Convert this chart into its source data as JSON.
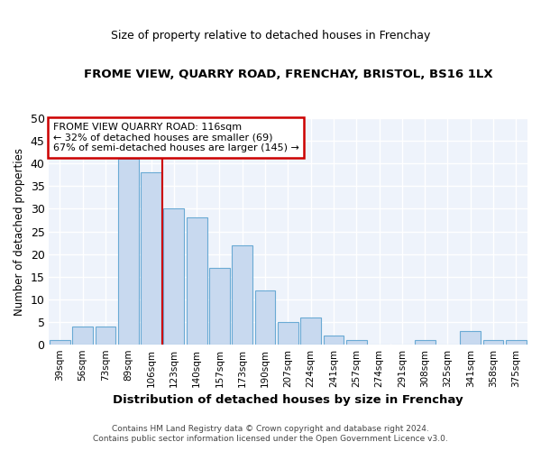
{
  "title": "FROME VIEW, QUARRY ROAD, FRENCHAY, BRISTOL, BS16 1LX",
  "subtitle": "Size of property relative to detached houses in Frenchay",
  "xlabel": "Distribution of detached houses by size in Frenchay",
  "ylabel": "Number of detached properties",
  "categories": [
    "39sqm",
    "56sqm",
    "73sqm",
    "89sqm",
    "106sqm",
    "123sqm",
    "140sqm",
    "157sqm",
    "173sqm",
    "190sqm",
    "207sqm",
    "224sqm",
    "241sqm",
    "257sqm",
    "274sqm",
    "291sqm",
    "308sqm",
    "325sqm",
    "341sqm",
    "358sqm",
    "375sqm"
  ],
  "values": [
    1,
    4,
    4,
    41,
    38,
    30,
    28,
    17,
    22,
    12,
    5,
    6,
    2,
    1,
    0,
    0,
    1,
    0,
    3,
    1,
    1
  ],
  "bar_color": "#c8d9ef",
  "bar_edge_color": "#6aaad4",
  "vline_color": "#cc0000",
  "annotation_title": "FROME VIEW QUARRY ROAD: 116sqm",
  "annotation_line1": "← 32% of detached houses are smaller (69)",
  "annotation_line2": "67% of semi-detached houses are larger (145) →",
  "annotation_box_color": "#ffffff",
  "annotation_box_edge_color": "#cc0000",
  "ylim": [
    0,
    50
  ],
  "yticks": [
    0,
    5,
    10,
    15,
    20,
    25,
    30,
    35,
    40,
    45,
    50
  ],
  "footnote1": "Contains HM Land Registry data © Crown copyright and database right 2024.",
  "footnote2": "Contains public sector information licensed under the Open Government Licence v3.0.",
  "bg_color": "#ffffff",
  "plot_bg_color": "#eef3fb",
  "grid_color": "#ffffff"
}
